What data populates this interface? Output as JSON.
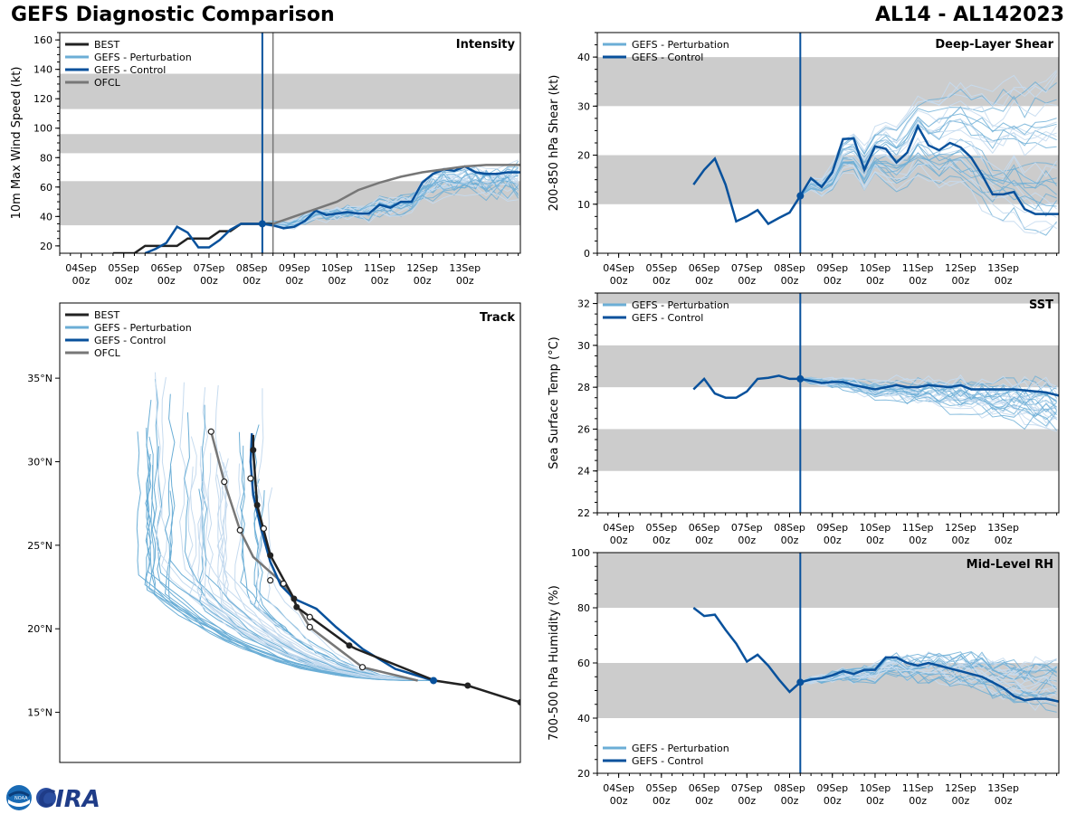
{
  "header": {
    "title_left": "GEFS Diagnostic Comparison",
    "title_right": "AL14 - AL142023"
  },
  "logo": {
    "noaa": "NOAA",
    "cira": "CIRA"
  },
  "colors": {
    "best": "#222222",
    "pert": "#6baed6",
    "control": "#08519c",
    "ofcl": "#777777",
    "band": "#cccccc"
  },
  "x_ticks": [
    "04Sep\n00z",
    "05Sep\n00z",
    "06Sep\n00z",
    "07Sep\n00z",
    "08Sep\n00z",
    "09Sep\n00z",
    "10Sep\n00z",
    "11Sep\n00z",
    "12Sep\n00z",
    "13Sep\n00z"
  ],
  "chart_data": [
    {
      "id": "intensity",
      "type": "line",
      "title": "Intensity",
      "ylabel": "10m Max Wind Speed (kt)",
      "xlim": [
        -0.5,
        10.3
      ],
      "ylim": [
        15,
        165
      ],
      "yticks": [
        20,
        40,
        60,
        80,
        100,
        120,
        140,
        160
      ],
      "bands": [
        [
          34,
          64
        ],
        [
          83,
          96
        ],
        [
          113,
          137
        ]
      ],
      "init_time": 4.25,
      "ofcl_init": 4.5,
      "legend": [
        "BEST",
        "GEFS - Perturbation",
        "GEFS - Control",
        "OFCL"
      ],
      "series": [
        {
          "name": "BEST",
          "x": [
            0.75,
            1.25,
            1.5,
            1.75,
            2.0,
            2.25,
            2.5,
            2.75,
            3.0,
            3.25,
            3.5,
            3.75,
            4.0,
            4.25,
            4.5
          ],
          "y": [
            15,
            15,
            20,
            20,
            20,
            20,
            25,
            25,
            25,
            30,
            30,
            35,
            35,
            35,
            35
          ]
        },
        {
          "name": "GEFS - Control",
          "x": [
            1.5,
            1.75,
            2.0,
            2.25,
            2.5,
            2.75,
            3.0,
            3.25,
            3.5,
            3.75,
            4.0,
            4.25,
            4.5,
            4.75,
            5.0,
            5.25,
            5.5,
            5.75,
            6.0,
            6.25,
            6.5,
            6.75,
            7.0,
            7.25,
            7.5,
            7.75,
            8.0,
            8.25,
            8.5,
            8.75,
            9.0,
            9.25,
            9.5,
            9.75,
            10.0,
            10.3
          ],
          "y": [
            15,
            18,
            22,
            33,
            29,
            19,
            19,
            24,
            31,
            35,
            35,
            35,
            34,
            32,
            33,
            37,
            44,
            41,
            42,
            43,
            42,
            42,
            48,
            46,
            50,
            50,
            63,
            69,
            72,
            71,
            74,
            70,
            69,
            69,
            70,
            70
          ]
        },
        {
          "name": "OFCL",
          "x": [
            4.5,
            5.0,
            5.5,
            6.0,
            6.5,
            7.0,
            7.5,
            8.0,
            8.5,
            9.0,
            9.5,
            10.3
          ],
          "y": [
            35,
            40,
            45,
            50,
            58,
            63,
            67,
            70,
            72,
            74,
            75,
            75
          ]
        }
      ],
      "perturbation_members": 30,
      "perturbation_start": [
        4.25,
        35
      ],
      "perturbation_end_range": [
        55,
        72
      ]
    },
    {
      "id": "shear",
      "type": "line",
      "title": "Deep-Layer Shear",
      "ylabel": "200-850 hPa Shear (kt)",
      "xlim": [
        -0.5,
        10.3
      ],
      "ylim": [
        0,
        45
      ],
      "yticks": [
        0,
        10,
        20,
        30,
        40
      ],
      "bands": [
        [
          10,
          20
        ],
        [
          30,
          40
        ]
      ],
      "init_time": 4.25,
      "legend": [
        "GEFS - Perturbation",
        "GEFS - Control"
      ],
      "series": [
        {
          "name": "GEFS - Control",
          "x": [
            1.75,
            2.0,
            2.25,
            2.5,
            2.75,
            3.0,
            3.25,
            3.5,
            3.75,
            4.0,
            4.25,
            4.5,
            4.75,
            5.0,
            5.25,
            5.5,
            5.75,
            6.0,
            6.25,
            6.5,
            6.75,
            7.0,
            7.25,
            7.5,
            7.75,
            8.0,
            8.25,
            8.5,
            8.75,
            9.0,
            9.25,
            9.5,
            9.75,
            10.0,
            10.3
          ],
          "y": [
            14,
            17,
            19.3,
            14,
            6.5,
            7.5,
            8.8,
            6,
            7.2,
            8.3,
            11.7,
            15.3,
            13.5,
            16.5,
            23.3,
            23.4,
            17,
            21.8,
            21.3,
            18.5,
            20.5,
            25.9,
            22,
            21,
            22.5,
            21.6,
            19.5,
            16,
            12,
            12,
            12.5,
            9,
            8,
            8,
            8
          ]
        }
      ],
      "perturbation_members": 30,
      "perturbation_start": [
        4.25,
        11.7
      ],
      "perturbation_end_range": [
        4,
        38
      ]
    },
    {
      "id": "sst",
      "type": "line",
      "title": "SST",
      "ylabel": "Sea Surface Temp (°C)",
      "xlim": [
        -0.5,
        10.3
      ],
      "ylim": [
        22,
        32.5
      ],
      "yticks": [
        22,
        24,
        26,
        28,
        30,
        32
      ],
      "bands": [
        [
          24,
          26
        ],
        [
          28,
          30
        ],
        [
          32,
          33
        ]
      ],
      "init_time": 4.25,
      "legend": [
        "GEFS - Perturbation",
        "GEFS - Control"
      ],
      "series": [
        {
          "name": "GEFS - Control",
          "x": [
            1.75,
            2.0,
            2.25,
            2.5,
            2.75,
            3.0,
            3.25,
            3.5,
            3.75,
            4.0,
            4.25,
            4.5,
            4.75,
            5.0,
            5.25,
            5.5,
            5.75,
            6.0,
            6.25,
            6.5,
            6.75,
            7.0,
            7.25,
            7.5,
            7.75,
            8.0,
            8.25,
            8.5,
            8.75,
            9.0,
            9.25,
            9.5,
            9.75,
            10.0,
            10.3
          ],
          "y": [
            27.9,
            28.4,
            27.7,
            27.5,
            27.5,
            27.8,
            28.4,
            28.45,
            28.55,
            28.4,
            28.4,
            28.3,
            28.2,
            28.25,
            28.25,
            28.1,
            28.0,
            27.9,
            28.0,
            28.1,
            28.0,
            28.0,
            28.1,
            28.05,
            28.0,
            28.1,
            27.9,
            27.9,
            27.9,
            27.9,
            27.9,
            27.85,
            27.8,
            27.75,
            27.6
          ]
        }
      ],
      "perturbation_members": 30,
      "perturbation_start": [
        4.25,
        28.4
      ],
      "perturbation_end_range": [
        26.0,
        28.2
      ]
    },
    {
      "id": "rh",
      "type": "line",
      "title": "Mid-Level RH",
      "ylabel": "700-500 hPa Humidity (%)",
      "xlim": [
        -0.5,
        10.3
      ],
      "ylim": [
        20,
        100
      ],
      "yticks": [
        20,
        40,
        60,
        80,
        100
      ],
      "bands": [
        [
          40,
          60
        ],
        [
          80,
          100
        ]
      ],
      "init_time": 4.25,
      "legend": [
        "GEFS - Perturbation",
        "GEFS - Control"
      ],
      "series": [
        {
          "name": "GEFS - Control",
          "x": [
            1.75,
            2.0,
            2.25,
            2.5,
            2.75,
            3.0,
            3.25,
            3.5,
            3.75,
            4.0,
            4.25,
            4.5,
            4.75,
            5.0,
            5.25,
            5.5,
            5.75,
            6.0,
            6.25,
            6.5,
            6.75,
            7.0,
            7.25,
            7.5,
            7.75,
            8.0,
            8.25,
            8.5,
            8.75,
            9.0,
            9.25,
            9.5,
            9.75,
            10.0,
            10.3
          ],
          "y": [
            80,
            77,
            77.5,
            72,
            67,
            60.5,
            63,
            59,
            54,
            49.5,
            53,
            54,
            54.5,
            55.5,
            57,
            56,
            57.5,
            57.5,
            62,
            62,
            60,
            59,
            60,
            59,
            58,
            57,
            56,
            55,
            53,
            51,
            48,
            46.5,
            47,
            47,
            46
          ]
        }
      ],
      "perturbation_members": 30,
      "perturbation_start": [
        4.25,
        53
      ],
      "perturbation_end_range": [
        44,
        60
      ]
    },
    {
      "id": "track",
      "type": "scatter",
      "title": "Track",
      "lat_ticks": [
        "15°N",
        "20°N",
        "25°N",
        "30°N",
        "35°N"
      ],
      "lat_values": [
        15,
        20,
        25,
        30,
        35
      ],
      "lon_range": [
        -73,
        -38
      ],
      "lat_range": [
        12,
        39.5
      ],
      "legend": [
        "BEST",
        "GEFS - Perturbation",
        "GEFS - Control",
        "OFCL"
      ],
      "best_track": [
        [
          -34.5,
          14.8
        ],
        [
          -38.0,
          15.6
        ],
        [
          -42.0,
          16.6
        ],
        [
          -44.5,
          16.9
        ],
        [
          -50.5,
          18.8
        ],
        [
          -51.0,
          19.0
        ],
        [
          -55.0,
          21.3
        ],
        [
          -55.2,
          21.8
        ],
        [
          -57.0,
          24.4
        ],
        [
          -58.0,
          27.4
        ],
        [
          -58.3,
          30.7
        ],
        [
          -58.3,
          31.6
        ]
      ],
      "best_points": [
        [
          -38.0,
          15.6
        ],
        [
          -42.0,
          16.6
        ],
        [
          -51.0,
          19.0
        ],
        [
          -55.0,
          21.3
        ],
        [
          -55.2,
          21.8
        ],
        [
          -57.0,
          24.4
        ],
        [
          -58.0,
          27.4
        ],
        [
          -58.3,
          30.7
        ]
      ],
      "control_track": [
        [
          -44.6,
          16.9
        ],
        [
          -47.5,
          17.6
        ],
        [
          -50.0,
          18.8
        ],
        [
          -52.0,
          20.1
        ],
        [
          -53.5,
          21.2
        ],
        [
          -55.2,
          21.8
        ],
        [
          -56.2,
          22.6
        ],
        [
          -57.0,
          24.0
        ],
        [
          -57.7,
          26.0
        ],
        [
          -58.3,
          28.0
        ],
        [
          -58.5,
          30.0
        ],
        [
          -58.4,
          31.7
        ]
      ],
      "ofcl_track": [
        [
          -45.8,
          16.9
        ],
        [
          -50.0,
          17.7
        ],
        [
          -54.0,
          20.1
        ],
        [
          -56.0,
          22.7
        ],
        [
          -58.3,
          24.3
        ],
        [
          -59.3,
          25.9
        ],
        [
          -60.5,
          28.8
        ],
        [
          -61.5,
          31.8
        ]
      ],
      "ofcl_points": [
        [
          -50.0,
          17.7
        ],
        [
          -54.0,
          20.1
        ],
        [
          -54.0,
          20.7
        ],
        [
          -56.0,
          22.7
        ],
        [
          -57.0,
          22.9
        ],
        [
          -59.3,
          25.9
        ],
        [
          -57.5,
          26.0
        ],
        [
          -58.5,
          29.0
        ],
        [
          -60.5,
          28.8
        ],
        [
          -61.5,
          31.8
        ]
      ],
      "current_position": [
        -44.6,
        16.9
      ],
      "perturbation_members": 40
    }
  ]
}
